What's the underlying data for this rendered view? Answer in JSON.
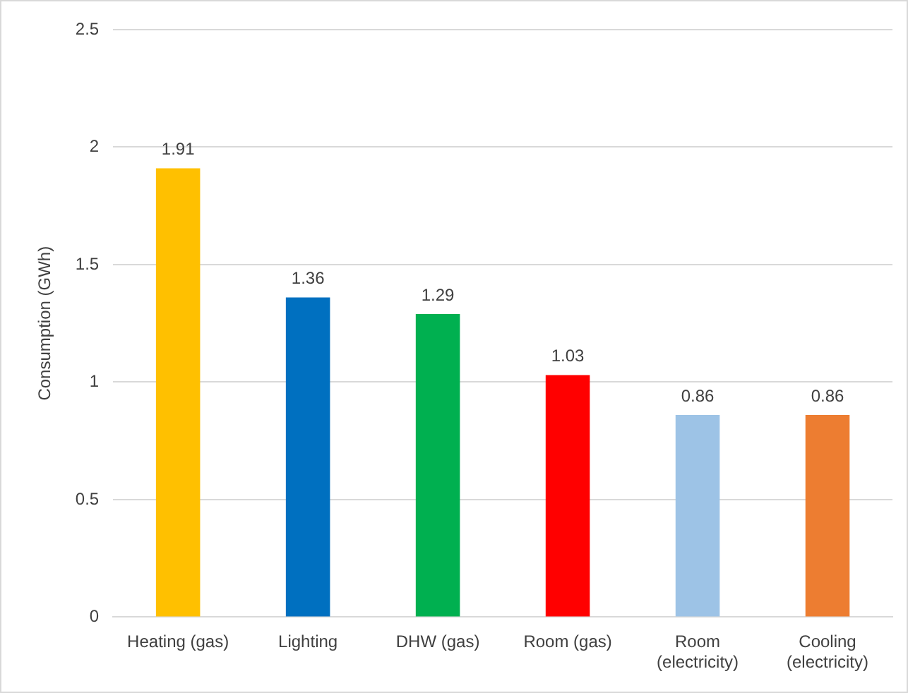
{
  "chart_data": {
    "type": "bar",
    "ylabel": "Consumption (GWh)",
    "categories": [
      "Heating (gas)",
      "Lighting",
      "DHW (gas)",
      "Room (gas)",
      "Room (electricity)",
      "Cooling (electricity)"
    ],
    "values": [
      1.91,
      1.36,
      1.29,
      1.03,
      0.86,
      0.86
    ],
    "colors": [
      "#ffc000",
      "#0070c0",
      "#00b050",
      "#ff0000",
      "#9dc3e6",
      "#ed7d31"
    ],
    "ylim": [
      0,
      2.5
    ],
    "yticks": [
      0,
      0.5,
      1,
      1.5,
      2,
      2.5
    ],
    "grid": "y",
    "legend": false,
    "data_labels": true
  }
}
